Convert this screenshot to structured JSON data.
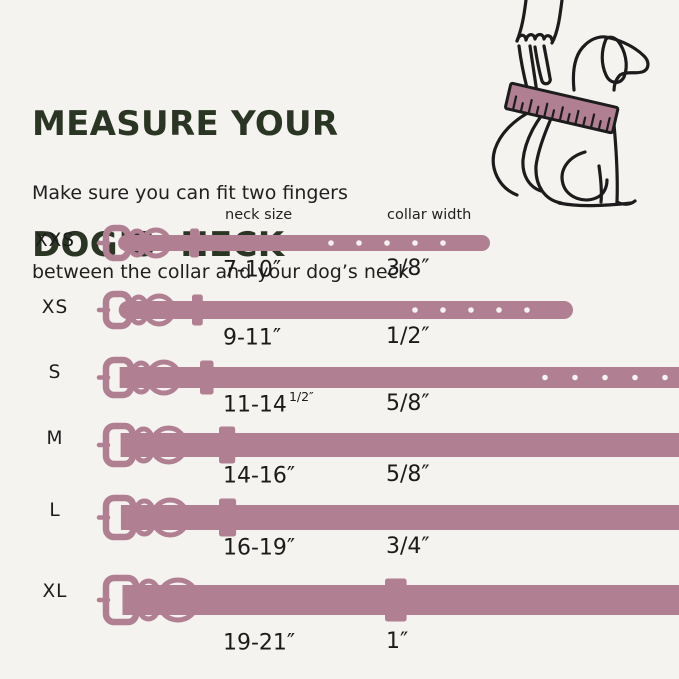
{
  "page": {
    "background": "#F4F3F0"
  },
  "header": {
    "title_line1": "MEASURE YOUR",
    "title_line2": "DOG’S  NECK",
    "title_color": "#2B3524",
    "subtitle_line1": "Make sure you can fit two fingers",
    "subtitle_line2": "between the collar and your dog’s neck"
  },
  "illustration": {
    "name": "hand-measuring-dog-neck-with-tape",
    "line_color": "#1C1C1C",
    "tape_color": "#B17F92"
  },
  "table": {
    "columns": {
      "neck_size": "neck size",
      "collar_width": "collar width"
    },
    "collar_color": "#B17F92",
    "hole_color": "#F4F3F0",
    "rows": [
      {
        "size": "XXS",
        "neck_size": "7-10″",
        "neck_size_sup": "",
        "collar_width": "3/8″"
      },
      {
        "size": "XS",
        "neck_size": "9-11″",
        "neck_size_sup": "",
        "collar_width": "1/2″"
      },
      {
        "size": "S",
        "neck_size": "11-14",
        "neck_size_sup": "1/2″",
        "collar_width": "5/8″"
      },
      {
        "size": "M",
        "neck_size": "14-16″",
        "neck_size_sup": "",
        "collar_width": "5/8″"
      },
      {
        "size": "L",
        "neck_size": "16-19″",
        "neck_size_sup": "",
        "collar_width": "3/4″"
      },
      {
        "size": "XL",
        "neck_size": "19-21″",
        "neck_size_sup": "",
        "collar_width": "1″"
      }
    ]
  }
}
